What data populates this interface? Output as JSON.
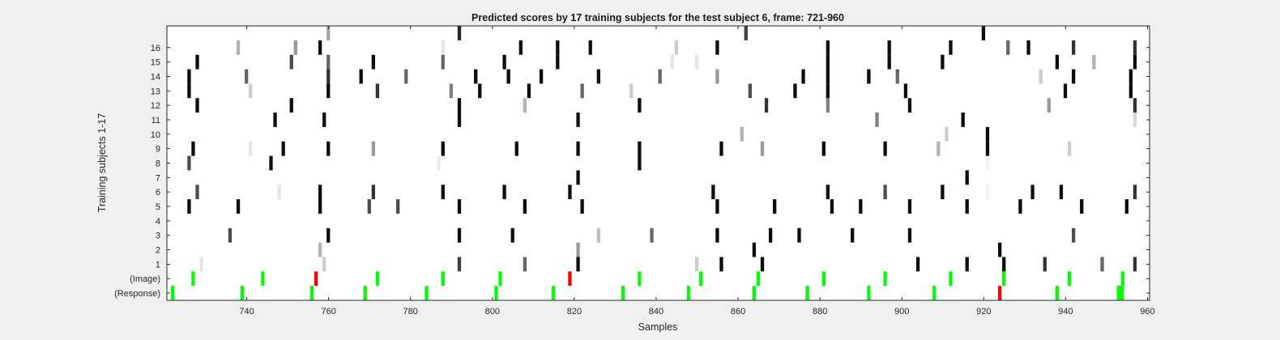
{
  "chart_data": {
    "type": "heatmap",
    "title": "Predicted scores by 17 training subjects for the test subject 6, frame: 721-960",
    "xlabel": "Samples",
    "ylabel": "Training subjects 1-17",
    "xlim": [
      721,
      960
    ],
    "x_ticks": [
      "740",
      "760",
      "780",
      "800",
      "820",
      "840",
      "860",
      "880",
      "900",
      "920",
      "940",
      "960"
    ],
    "y_tick_labels": [
      "(Response)",
      "(Image)",
      "1",
      "2",
      "3",
      "4",
      "5",
      "6",
      "7",
      "8",
      "9",
      "10",
      "11",
      "12",
      "13",
      "14",
      "15",
      "16"
    ],
    "colors": {
      "background": "#f0f0f0",
      "plot": "#ffffff",
      "marker_green": "#00ff00",
      "marker_red": "#ff0000"
    },
    "response_markers": [
      {
        "x": 722,
        "color": "green"
      },
      {
        "x": 739,
        "color": "green"
      },
      {
        "x": 756,
        "color": "green"
      },
      {
        "x": 769,
        "color": "green"
      },
      {
        "x": 784,
        "color": "green"
      },
      {
        "x": 801,
        "color": "green"
      },
      {
        "x": 815,
        "color": "green"
      },
      {
        "x": 832,
        "color": "green"
      },
      {
        "x": 848,
        "color": "green"
      },
      {
        "x": 864,
        "color": "green"
      },
      {
        "x": 877,
        "color": "green"
      },
      {
        "x": 892,
        "color": "green"
      },
      {
        "x": 908,
        "color": "green"
      },
      {
        "x": 924,
        "color": "red"
      },
      {
        "x": 938,
        "color": "green"
      },
      {
        "x": 953,
        "color": "green",
        "span": 2
      }
    ],
    "image_markers": [
      {
        "x": 727,
        "color": "green"
      },
      {
        "x": 744,
        "color": "green"
      },
      {
        "x": 757,
        "color": "red"
      },
      {
        "x": 772,
        "color": "green"
      },
      {
        "x": 788,
        "color": "green"
      },
      {
        "x": 802,
        "color": "green"
      },
      {
        "x": 819,
        "color": "red"
      },
      {
        "x": 836,
        "color": "green"
      },
      {
        "x": 851,
        "color": "green"
      },
      {
        "x": 865,
        "color": "green"
      },
      {
        "x": 881,
        "color": "green"
      },
      {
        "x": 896,
        "color": "green"
      },
      {
        "x": 912,
        "color": "green"
      },
      {
        "x": 925,
        "color": "green"
      },
      {
        "x": 941,
        "color": "green"
      },
      {
        "x": 954,
        "color": "green"
      }
    ],
    "subject_scores": [
      {
        "subject": 1,
        "cells": [
          [
            729,
            0.1
          ],
          [
            759,
            0.2
          ],
          [
            792,
            0.75
          ],
          [
            808,
            0.6
          ],
          [
            821,
            0.95
          ],
          [
            850,
            0.2
          ],
          [
            856,
            0.95
          ],
          [
            866,
            0.95
          ],
          [
            904,
            0.95
          ],
          [
            916,
            0.95
          ],
          [
            925,
            0.95
          ],
          [
            935,
            0.8
          ],
          [
            949,
            0.6
          ],
          [
            957,
            0.8
          ]
        ]
      },
      {
        "subject": 2,
        "cells": [
          [
            758,
            0.3
          ],
          [
            821,
            0.4
          ],
          [
            864,
            0.95
          ],
          [
            924,
            0.95
          ]
        ]
      },
      {
        "subject": 3,
        "cells": [
          [
            736,
            0.7
          ],
          [
            760,
            0.95
          ],
          [
            792,
            0.95
          ],
          [
            805,
            0.95
          ],
          [
            826,
            0.25
          ],
          [
            839,
            0.6
          ],
          [
            855,
            0.95
          ],
          [
            868,
            0.95
          ],
          [
            875,
            0.95
          ],
          [
            888,
            0.95
          ],
          [
            902,
            0.95
          ],
          [
            942,
            0.7
          ]
        ]
      },
      {
        "subject": 5,
        "cells": [
          [
            726,
            0.95
          ],
          [
            738,
            0.95
          ],
          [
            758,
            0.95
          ],
          [
            770,
            0.7
          ],
          [
            777,
            0.7
          ],
          [
            792,
            0.95
          ],
          [
            808,
            0.95
          ],
          [
            822,
            0.95
          ],
          [
            855,
            0.95
          ],
          [
            869,
            0.95
          ],
          [
            883,
            0.95
          ],
          [
            890,
            0.95
          ],
          [
            902,
            0.95
          ],
          [
            916,
            0.95
          ],
          [
            929,
            0.95
          ],
          [
            944,
            0.95
          ],
          [
            955,
            0.95
          ]
        ]
      },
      {
        "subject": 6,
        "cells": [
          [
            728,
            0.7
          ],
          [
            748,
            0.1
          ],
          [
            758,
            0.95
          ],
          [
            771,
            0.8
          ],
          [
            788,
            0.95
          ],
          [
            803,
            0.95
          ],
          [
            819,
            0.95
          ],
          [
            854,
            0.95
          ],
          [
            882,
            0.95
          ],
          [
            896,
            0.7
          ],
          [
            910,
            0.95
          ],
          [
            921,
            0.05
          ],
          [
            932,
            0.95
          ],
          [
            939,
            0.95
          ],
          [
            957,
            0.8
          ]
        ]
      },
      {
        "subject": 7,
        "cells": [
          [
            821,
            0.95
          ],
          [
            916,
            0.95
          ]
        ]
      },
      {
        "subject": 8,
        "cells": [
          [
            726,
            0.7
          ],
          [
            746,
            0.95
          ],
          [
            787,
            0.08
          ],
          [
            836,
            0.95
          ],
          [
            921,
            0.05
          ]
        ]
      },
      {
        "subject": 9,
        "cells": [
          [
            727,
            0.95
          ],
          [
            741,
            0.1
          ],
          [
            749,
            0.95
          ],
          [
            760,
            0.95
          ],
          [
            771,
            0.4
          ],
          [
            788,
            0.95
          ],
          [
            806,
            0.95
          ],
          [
            821,
            0.95
          ],
          [
            836,
            0.95
          ],
          [
            856,
            0.95
          ],
          [
            866,
            0.4
          ],
          [
            881,
            0.95
          ],
          [
            896,
            0.95
          ],
          [
            909,
            0.3
          ],
          [
            921,
            0.95
          ],
          [
            941,
            0.2
          ]
        ]
      },
      {
        "subject": 10,
        "cells": [
          [
            861,
            0.3
          ],
          [
            911,
            0.2
          ],
          [
            921,
            0.95
          ]
        ]
      },
      {
        "subject": 11,
        "cells": [
          [
            747,
            0.95
          ],
          [
            759,
            0.95
          ],
          [
            792,
            0.95
          ],
          [
            821,
            0.95
          ],
          [
            894,
            0.5
          ],
          [
            915,
            0.95
          ],
          [
            957,
            0.15
          ]
        ]
      },
      {
        "subject": 12,
        "cells": [
          [
            728,
            0.95
          ],
          [
            751,
            0.95
          ],
          [
            792,
            0.95
          ],
          [
            808,
            0.3
          ],
          [
            836,
            0.95
          ],
          [
            867,
            0.8
          ],
          [
            882,
            0.5
          ],
          [
            902,
            0.95
          ],
          [
            936,
            0.4
          ],
          [
            957,
            0.8
          ]
        ]
      },
      {
        "subject": 13,
        "cells": [
          [
            726,
            0.95
          ],
          [
            741,
            0.2
          ],
          [
            760,
            0.95
          ],
          [
            772,
            0.8
          ],
          [
            790,
            0.5
          ],
          [
            797,
            0.95
          ],
          [
            809,
            0.95
          ],
          [
            822,
            0.6
          ],
          [
            834,
            0.2
          ],
          [
            863,
            0.7
          ],
          [
            874,
            0.95
          ],
          [
            882,
            0.95
          ],
          [
            901,
            0.95
          ],
          [
            940,
            0.95
          ],
          [
            956,
            0.95
          ]
        ]
      },
      {
        "subject": 14,
        "cells": [
          [
            726,
            0.95
          ],
          [
            740,
            0.6
          ],
          [
            760,
            0.8
          ],
          [
            768,
            0.95
          ],
          [
            779,
            0.6
          ],
          [
            796,
            0.95
          ],
          [
            804,
            0.95
          ],
          [
            812,
            0.95
          ],
          [
            826,
            0.95
          ],
          [
            841,
            0.6
          ],
          [
            855,
            0.4
          ],
          [
            876,
            0.95
          ],
          [
            882,
            0.95
          ],
          [
            892,
            0.95
          ],
          [
            899,
            0.6
          ],
          [
            934,
            0.2
          ],
          [
            942,
            0.95
          ],
          [
            956,
            0.95
          ]
        ]
      },
      {
        "subject": 15,
        "cells": [
          [
            728,
            0.95
          ],
          [
            751,
            0.7
          ],
          [
            760,
            0.6
          ],
          [
            771,
            0.95
          ],
          [
            788,
            0.6
          ],
          [
            803,
            0.95
          ],
          [
            816,
            0.95
          ],
          [
            844,
            0.1
          ],
          [
            850,
            0.1
          ],
          [
            882,
            0.95
          ],
          [
            897,
            0.95
          ],
          [
            910,
            0.95
          ],
          [
            938,
            0.95
          ],
          [
            947,
            0.3
          ],
          [
            957,
            0.95
          ]
        ]
      },
      {
        "subject": 16,
        "cells": [
          [
            738,
            0.3
          ],
          [
            752,
            0.4
          ],
          [
            758,
            0.95
          ],
          [
            788,
            0.1
          ],
          [
            807,
            0.95
          ],
          [
            816,
            0.95
          ],
          [
            824,
            0.95
          ],
          [
            845,
            0.2
          ],
          [
            855,
            0.95
          ],
          [
            882,
            0.95
          ],
          [
            897,
            0.95
          ],
          [
            912,
            0.95
          ],
          [
            926,
            0.6
          ],
          [
            931,
            0.95
          ],
          [
            942,
            0.8
          ],
          [
            957,
            0.8
          ]
        ]
      },
      {
        "subject": 17,
        "cells": [
          [
            760,
            0.35
          ],
          [
            792,
            0.85
          ],
          [
            862,
            0.75
          ],
          [
            920,
            0.95
          ]
        ]
      }
    ]
  }
}
